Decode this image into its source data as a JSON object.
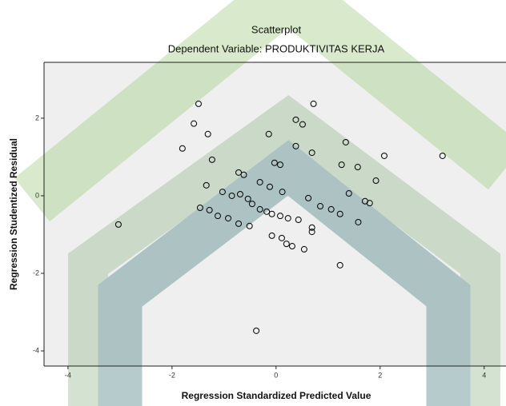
{
  "chart_data": {
    "type": "scatter",
    "title": "Scatterplot",
    "subtitle": "Dependent Variable: PRODUKTIVITAS KERJA",
    "xlabel": "Regression Standardized Predicted Value",
    "ylabel": "Regression Studentized Residual",
    "xlim": [
      -4.46,
      4.42
    ],
    "ylim": [
      -4.39,
      3.44
    ],
    "xticks": [
      -4,
      -2,
      0,
      2,
      4
    ],
    "yticks": [
      -4,
      -2,
      0,
      2
    ],
    "color": "#000000",
    "x": [
      -1.49,
      -1.58,
      -1.31,
      -1.8,
      -1.23,
      -3.03,
      0.72,
      0.38,
      0.51,
      -0.14,
      0.38,
      0.69,
      1.34,
      2.08,
      3.2,
      -0.03,
      0.08,
      -0.72,
      -0.62,
      -0.31,
      -0.12,
      0.12,
      -1.34,
      -1.03,
      -0.85,
      1.26,
      1.92,
      1.4,
      1.8,
      1.71,
      0.62,
      0.85,
      1.06,
      -1.46,
      -1.28,
      -1.12,
      -0.92,
      -0.72,
      -0.51,
      -0.46,
      -0.31,
      -0.18,
      -0.08,
      0.08,
      0.23,
      0.43,
      0.69,
      1.23,
      1.58,
      -0.69,
      -0.08,
      0.11,
      0.31,
      0.54,
      0.2,
      1.23,
      -0.38,
      -0.54,
      0.69,
      1.57
    ],
    "values": [
      2.37,
      1.86,
      1.59,
      1.22,
      0.93,
      -0.74,
      2.37,
      1.96,
      1.84,
      1.59,
      1.28,
      1.11,
      1.38,
      1.03,
      1.03,
      0.85,
      0.8,
      0.6,
      0.54,
      0.35,
      0.23,
      0.1,
      0.27,
      0.1,
      0,
      0.8,
      0.39,
      0.06,
      -0.19,
      -0.14,
      -0.06,
      -0.27,
      -0.35,
      -0.31,
      -0.37,
      -0.52,
      -0.58,
      -0.72,
      -0.78,
      -0.21,
      -0.35,
      -0.41,
      -0.47,
      -0.52,
      -0.58,
      -0.62,
      -0.82,
      -0.47,
      -0.68,
      0.04,
      -1.03,
      -1.09,
      -1.3,
      -1.38,
      -1.24,
      -1.79,
      -3.48,
      -0.08,
      -0.93,
      0.74
    ]
  }
}
